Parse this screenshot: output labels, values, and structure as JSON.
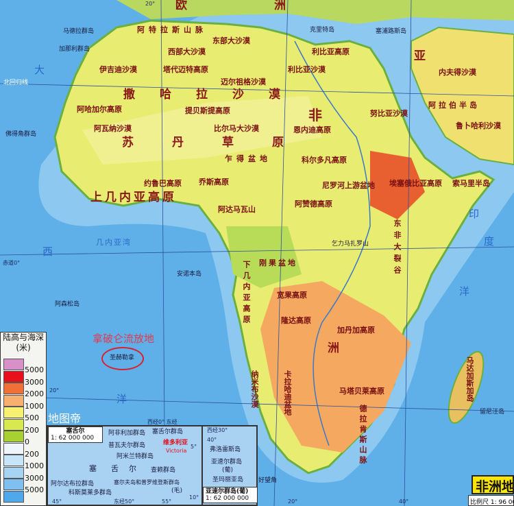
{
  "map": {
    "continents": [
      "欧",
      "洲",
      "亚",
      "非",
      "洲"
    ],
    "labels": [
      "阿特拉斯山脉",
      "马德拉群岛",
      "加那利群岛",
      "北回归线",
      "佛得角群岛",
      "克里特岛",
      "塞浦路斯岛",
      "西部大沙漠",
      "东部大沙漠",
      "伊吉迪沙漠",
      "塔代迈特高原",
      "利比亚高原",
      "利比亚沙漠",
      "迈尔祖格沙漠",
      "阿哈加尔高原",
      "提贝斯提高原",
      "撒哈拉沙漠",
      "阿拉伯半岛",
      "内夫得沙漠",
      "鲁卜哈利沙漠",
      "努比亚沙漠",
      "阿瓦纳沙漠",
      "比尔马大沙漠",
      "恩内迪高原",
      "苏丹草原",
      "乍得盆地",
      "科尔多凡高原",
      "约鲁巴高原",
      "乔斯高原",
      "上几内亚高原",
      "埃塞俄比亚高原",
      "索马里半岛",
      "阿达马瓦山",
      "阿赞德高原",
      "尼罗河上游盆地",
      "刚果盆地",
      "乞力马扎罗山",
      "东非大裂谷",
      "几内亚湾",
      "安诺本岛",
      "阿森松岛",
      "宽果高原",
      "隆达高原",
      "加丹加高原",
      "纳米布沙漠",
      "卡拉哈迪盆地",
      "马达加斯加岛",
      "德拉肯斯山脉",
      "马塔贝莱高原",
      "好望角",
      "留尼汪岛",
      "下几内亚高原",
      "圣赫勒拿"
    ],
    "seas": [
      "大",
      "西",
      "洋",
      "印",
      "度",
      "洋"
    ],
    "coords": [
      "20°",
      "赤道0°",
      "20°",
      "西经0° 东经",
      "20°",
      "40°"
    ]
  },
  "annotation": {
    "note": "拿破仑流放地",
    "watermark": "地图帝"
  },
  "legend": {
    "title": "陆高与海深",
    "unit": "(米)",
    "bands": [
      {
        "color": "#d890c8",
        "label": "5000"
      },
      {
        "color": "#e8101a",
        "label": "3000"
      },
      {
        "color": "#f07038",
        "label": "2000"
      },
      {
        "color": "#f8b070",
        "label": "1000"
      },
      {
        "color": "#f8f070",
        "label": "500"
      },
      {
        "color": "#d8e850",
        "label": "200"
      },
      {
        "color": "#a8d030",
        "label": "0"
      },
      {
        "color": "#eef6fc",
        "label": "200"
      },
      {
        "color": "#c8e4f8",
        "label": "1000"
      },
      {
        "color": "#a8d4f4",
        "label": "3000"
      },
      {
        "color": "#80c0f0",
        "label": "5000"
      },
      {
        "color": "#50a8ec",
        "label": ""
      }
    ]
  },
  "inset": {
    "seychelles": {
      "title": "塞舌尔",
      "scale": "1: 62 000 000",
      "labels": [
        "阿非利加群岛",
        "普瓦夫尔群岛",
        "阿米兰特群岛",
        "塞舌尔群岛",
        "维多利亚",
        "Victoria",
        "塞",
        "舌",
        "尔",
        "查赖群岛",
        "阿尔达布拉群岛",
        "科斯莫莱多群岛",
        "塞尔夫岛和普罗维登斯群岛",
        "(毛)",
        "45°",
        "东经50°",
        "55°",
        "5°",
        "10°"
      ]
    },
    "azores": {
      "title": "亚速尔群岛(葡)",
      "scale": "1: 62 000 000",
      "labels": [
        "西经30°",
        "40°",
        "弗洛雷斯岛",
        "亚速尔群岛",
        "(葡)",
        "圣玛丽亚岛"
      ]
    }
  },
  "title": {
    "text": "非洲地",
    "scale": "比例尺 1: 96 00"
  }
}
